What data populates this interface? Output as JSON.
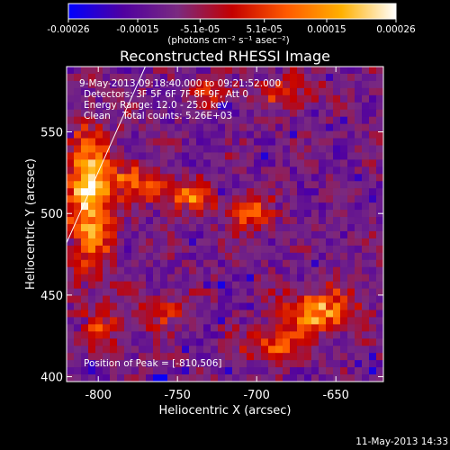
{
  "chart_data": {
    "type": "heatmap",
    "title": "Reconstructed RHESSI Image",
    "xlabel": "Heliocentric X (arcsec)",
    "ylabel": "Heliocentric Y (arcsec)",
    "xlim": [
      -820,
      -620
    ],
    "ylim": [
      397,
      590
    ],
    "x_ticks": [
      -800,
      -750,
      -700,
      -650
    ],
    "x_tick_labels": [
      "-800",
      "-750",
      "-700",
      "-650"
    ],
    "y_ticks": [
      400,
      450,
      500,
      550
    ],
    "y_tick_labels": [
      "400",
      "450",
      "500",
      "550"
    ],
    "colorbar": {
      "range": [
        -0.00026,
        0.00026
      ],
      "ticks": [
        -0.00026,
        -0.00015,
        -5.1e-05,
        5.1e-05,
        0.00015,
        0.00026
      ],
      "tick_labels": [
        "-0.00026",
        "-0.00015",
        "-5.1e-05",
        "5.1e-05",
        "0.00015",
        "0.00026"
      ],
      "unit_label": "(photons cm⁻² s⁻¹ asec⁻²)",
      "colors": [
        "#0000ff",
        "#5000a0",
        "#7a2a80",
        "#c40000",
        "#ff5a00",
        "#ffb000",
        "#ffffff"
      ]
    },
    "annotations": [
      "9-May-2013 09:18:40.000 to 09:21:52.000",
      "Detectors: 3F 5F 6F 7F 8F 9F, Att 0",
      "Energy Range: 12.0 - 25.0 keV",
      "Clean    Total counts: 5.26E+03"
    ],
    "peak_label": "Position of Peak = [-810,506]",
    "peak_position": [
      -810,
      506
    ],
    "limb_line": {
      "x": [
        -820,
        -768
      ],
      "y": [
        482,
        595
      ]
    },
    "hot_regions": [
      {
        "x": -805,
        "y": 510,
        "sx": 14,
        "sy": 40,
        "amp": 1.0
      },
      {
        "x": -780,
        "y": 522,
        "sx": 10,
        "sy": 10,
        "amp": 0.55
      },
      {
        "x": -765,
        "y": 515,
        "sx": 10,
        "sy": 8,
        "amp": 0.6
      },
      {
        "x": -740,
        "y": 510,
        "sx": 14,
        "sy": 10,
        "amp": 0.6
      },
      {
        "x": -705,
        "y": 500,
        "sx": 14,
        "sy": 10,
        "amp": 0.5
      },
      {
        "x": -660,
        "y": 440,
        "sx": 22,
        "sy": 12,
        "amp": 0.85
      },
      {
        "x": -690,
        "y": 420,
        "sx": 18,
        "sy": 10,
        "amp": 0.55
      },
      {
        "x": -680,
        "y": 575,
        "sx": 18,
        "sy": 10,
        "amp": 0.45
      },
      {
        "x": -730,
        "y": 575,
        "sx": 14,
        "sy": 8,
        "amp": 0.45
      },
      {
        "x": -760,
        "y": 440,
        "sx": 16,
        "sy": 12,
        "amp": 0.35
      },
      {
        "x": -800,
        "y": 430,
        "sx": 14,
        "sy": 16,
        "amp": 0.35
      }
    ]
  },
  "footer": {
    "timestamp": "11-May-2013 14:33"
  }
}
